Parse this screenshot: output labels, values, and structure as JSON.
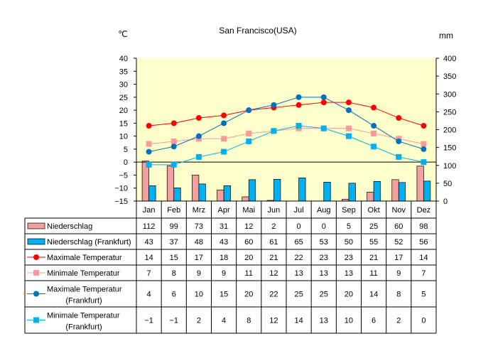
{
  "chart_data": {
    "type": "bar",
    "title": "San Francisco(USA)",
    "y_left_unit": "℃",
    "y_right_unit": "mm",
    "y_left_lim": [
      -15,
      40
    ],
    "y_left_ticks": [
      40,
      35,
      30,
      25,
      20,
      15,
      10,
      5,
      0,
      -5,
      -10,
      -15
    ],
    "y_right_lim": [
      0,
      400
    ],
    "y_right_ticks": [
      400,
      350,
      300,
      250,
      200,
      150,
      100,
      50,
      0
    ],
    "categories": [
      "Jan",
      "Feb",
      "Mrz",
      "Apr",
      "Mai",
      "Jun",
      "Jul",
      "Aug",
      "Sep",
      "Okt",
      "Nov",
      "Dez"
    ],
    "series": [
      {
        "name": "Niederschlag",
        "type": "bar",
        "axis": "right",
        "color": "#f4a0a0",
        "marker": "bar",
        "values": [
          112,
          99,
          73,
          31,
          12,
          2,
          0,
          0,
          5,
          25,
          60,
          98
        ],
        "display": [
          "112",
          "99",
          "73",
          "31",
          "12",
          "2",
          "0",
          "0",
          "5",
          "25",
          "60",
          "98"
        ]
      },
      {
        "name": "Niederschlag (Frankfurt)",
        "type": "bar",
        "axis": "right",
        "color": "#00b0f0",
        "marker": "bar",
        "values": [
          43,
          37,
          48,
          43,
          60,
          61,
          65,
          53,
          50,
          55,
          52,
          56
        ],
        "display": [
          "43",
          "37",
          "48",
          "43",
          "60",
          "61",
          "65",
          "53",
          "50",
          "55",
          "52",
          "56"
        ]
      },
      {
        "name": "Maximale Temperatur",
        "type": "line",
        "axis": "left",
        "color": "#ff0000",
        "marker": "circle",
        "values": [
          14,
          15,
          17,
          18,
          20,
          21,
          22,
          23,
          23,
          21,
          17,
          14
        ],
        "display": [
          "14",
          "15",
          "17",
          "18",
          "20",
          "21",
          "22",
          "23",
          "23",
          "21",
          "17",
          "14"
        ]
      },
      {
        "name": "Minimale Temperatur",
        "type": "line",
        "axis": "left",
        "color": "#ff9999",
        "marker": "square",
        "values": [
          7,
          8,
          9,
          9,
          11,
          12,
          13,
          13,
          13,
          11,
          9,
          7
        ],
        "display": [
          "7",
          "8",
          "9",
          "9",
          "11",
          "12",
          "13",
          "13",
          "13",
          "11",
          "9",
          "7"
        ]
      },
      {
        "name": "Maximale Temperatur\n(Frankfurt)",
        "type": "line",
        "axis": "left",
        "color": "#0070c0",
        "marker": "circle",
        "values": [
          4,
          6,
          10,
          15,
          20,
          22,
          25,
          25,
          20,
          14,
          8,
          5
        ],
        "display": [
          "4",
          "6",
          "10",
          "15",
          "20",
          "22",
          "25",
          "25",
          "20",
          "14",
          "8",
          "5"
        ]
      },
      {
        "name": "Minimale Temperatur\n(Frankfurt)",
        "type": "line",
        "axis": "left",
        "color": "#00b0f0",
        "marker": "square",
        "values": [
          -1,
          -1,
          2,
          4,
          8,
          12,
          14,
          13,
          10,
          6,
          2,
          0
        ],
        "display": [
          "−1",
          "−1",
          "2",
          "4",
          "8",
          "12",
          "14",
          "13",
          "10",
          "6",
          "2",
          "0"
        ]
      }
    ],
    "grid": false,
    "plot_background": "#ffffcc",
    "legend": "table-below"
  }
}
